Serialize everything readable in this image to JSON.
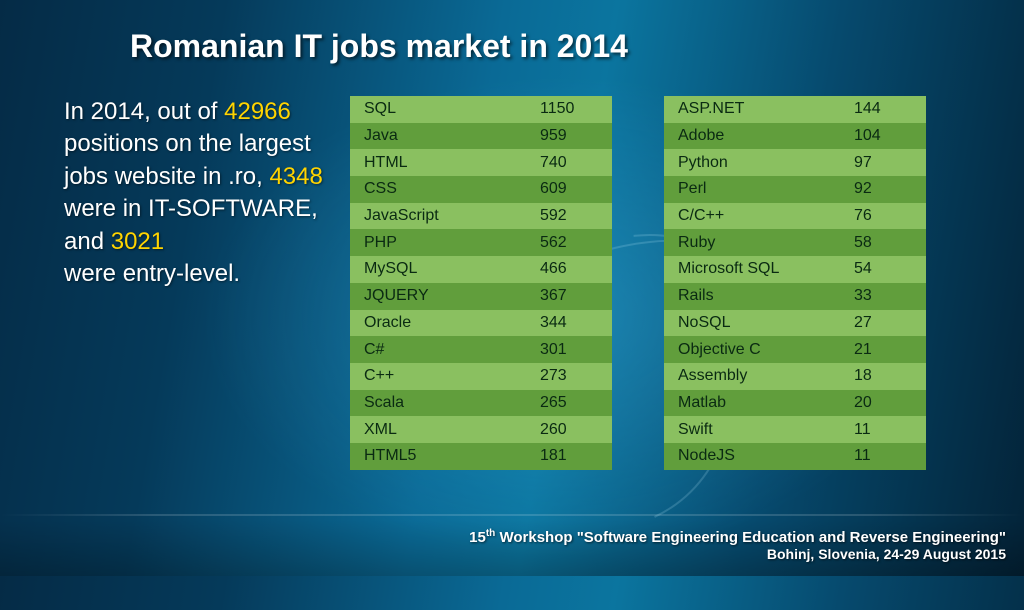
{
  "title": "Romanian IT jobs market in 2014",
  "summary": {
    "p1a": "In 2014, out of ",
    "n1": "42966",
    "p1b": " positions on the largest jobs website in .ro, ",
    "n2": "4348",
    "p1c": " were in IT-SOFTWARE, and ",
    "n3": "3021",
    "p1d": " were entry-level."
  },
  "table_colors": {
    "row_light": "#8ac060",
    "row_dark": "#619e3c",
    "text": "#0a2a12"
  },
  "table_left": {
    "rows": [
      {
        "label": "SQL",
        "value": "1150"
      },
      {
        "label": "Java",
        "value": "959"
      },
      {
        "label": "HTML",
        "value": "740"
      },
      {
        "label": "CSS",
        "value": "609"
      },
      {
        "label": "JavaScript",
        "value": "592"
      },
      {
        "label": "PHP",
        "value": "562"
      },
      {
        "label": "MySQL",
        "value": "466"
      },
      {
        "label": "JQUERY",
        "value": "367"
      },
      {
        "label": "Oracle",
        "value": "344"
      },
      {
        "label": "C#",
        "value": "301"
      },
      {
        "label": "C++",
        "value": "273"
      },
      {
        "label": "Scala",
        "value": "265"
      },
      {
        "label": "XML",
        "value": "260"
      },
      {
        "label": "HTML5",
        "value": "181"
      }
    ]
  },
  "table_right": {
    "rows": [
      {
        "label": "ASP.NET",
        "value": "144"
      },
      {
        "label": "Adobe",
        "value": "104"
      },
      {
        "label": "Python",
        "value": "97"
      },
      {
        "label": "Perl",
        "value": "92"
      },
      {
        "label": "C/C++",
        "value": "76"
      },
      {
        "label": "Ruby",
        "value": "58"
      },
      {
        "label": "Microsoft SQL",
        "value": "54"
      },
      {
        "label": "Rails",
        "value": "33"
      },
      {
        "label": "NoSQL",
        "value": "27"
      },
      {
        "label": "Objective C",
        "value": "21"
      },
      {
        "label": "Assembly",
        "value": "18"
      },
      {
        "label": "Matlab",
        "value": "20"
      },
      {
        "label": "Swift",
        "value": "11"
      },
      {
        "label": "NodeJS",
        "value": "11"
      }
    ]
  },
  "footer": {
    "ord": "th",
    "line1a": "15",
    "line1b": " Workshop \"Software Engineering Education and Reverse Engineering\"",
    "line2": "Bohinj, Slovenia, 24-29 August 2015"
  },
  "highlight_color": "#ffd400"
}
